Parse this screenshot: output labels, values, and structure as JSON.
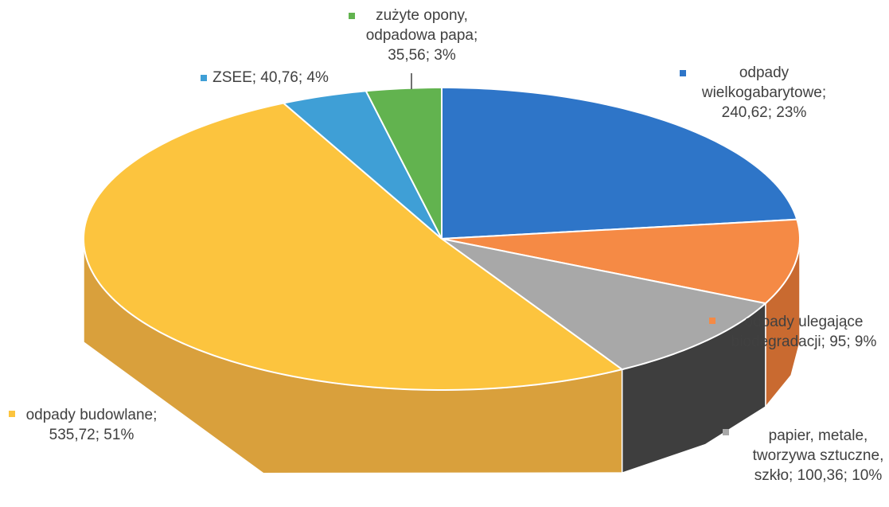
{
  "chart_data": {
    "type": "pie",
    "values": [
      240.62,
      95,
      100.36,
      535.72,
      40.76,
      35.56
    ],
    "value_labels": [
      [
        "odpady",
        "wielkogabarytowe;",
        "240,62; 23%"
      ],
      [
        "odpady ulegające",
        "biodegradacji; 95; 9%"
      ],
      [
        "papier, metale,",
        "tworzywa sztuczne,",
        "szkło; 100,36; 10%"
      ],
      [
        "odpady budowlane;",
        "535,72; 51%"
      ],
      [
        "ZSEE; 40,76; 4%"
      ],
      [
        "zużyte opony,",
        "odpadowa papa;",
        "35,56; 3%"
      ]
    ],
    "colors": [
      "#2e75c8",
      "#f58a45",
      "#a8a8a8",
      "#fcc43e",
      "#3f9fd6",
      "#62b34f"
    ],
    "side_colors": [
      "#1f5a9e",
      "#c96a30",
      "#3e3e3e",
      "#d9a03c",
      "#2f7fb0",
      "#4a8c3b"
    ]
  }
}
